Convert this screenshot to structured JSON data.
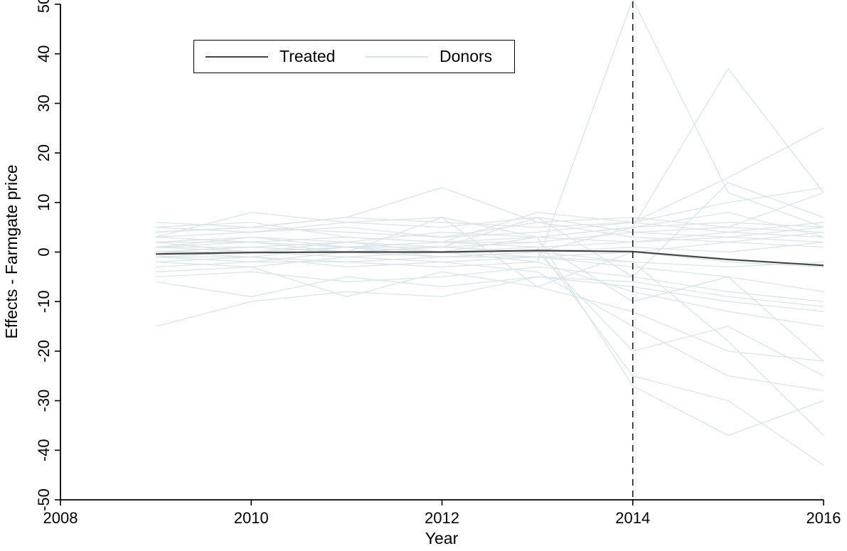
{
  "page": {
    "background": "#ffffff"
  },
  "chart_data": {
    "type": "line",
    "title": "",
    "xlabel": "Year",
    "ylabel": "Effects - Farmgate price",
    "xlim": [
      2008,
      2016
    ],
    "ylim": [
      -50,
      50
    ],
    "xticks": [
      2008,
      2010,
      2012,
      2014,
      2016
    ],
    "yticks": [
      50,
      40,
      30,
      20,
      10,
      0,
      -10,
      -20,
      -30,
      -40,
      -50
    ],
    "grid": false,
    "legend_position": "top-left-inside",
    "legend": [
      {
        "label": "Treated",
        "color": "#454545"
      },
      {
        "label": "Donors",
        "color": "#d9e4e8"
      }
    ],
    "treatment_line": {
      "x": 2014,
      "style": "dashed",
      "color": "#1a1a1a"
    },
    "x": [
      2009,
      2010,
      2011,
      2012,
      2013,
      2014,
      2015,
      2016
    ],
    "treated": {
      "name": "Treated",
      "color": "#454545",
      "values": [
        -0.4,
        -0.1,
        0,
        0,
        0.3,
        0.1,
        -1.5,
        -2.7
      ]
    },
    "donors": {
      "name": "Donors",
      "color": "#d9e4e8",
      "series": [
        [
          5,
          6,
          3,
          2,
          8,
          6,
          4,
          3
        ],
        [
          2,
          3,
          1,
          0,
          -2,
          51,
          12,
          5
        ],
        [
          3,
          8,
          6,
          7,
          3,
          5,
          37,
          12
        ],
        [
          -1,
          -2,
          0,
          1,
          7,
          -5,
          14,
          7
        ],
        [
          -15,
          -10,
          -8,
          -9,
          -5,
          -7,
          -10,
          -12
        ],
        [
          -4,
          -3,
          -9,
          -4,
          -7,
          -12,
          -20,
          -22
        ],
        [
          0,
          1,
          2,
          0,
          3,
          -27,
          -37,
          -30
        ],
        [
          2,
          0,
          1,
          2,
          1,
          -25,
          -30,
          -43
        ],
        [
          1,
          2,
          0,
          -1,
          0,
          -20,
          -15,
          -25
        ],
        [
          -2,
          -1,
          -3,
          -2,
          -4,
          -15,
          -25,
          -28
        ],
        [
          0,
          0,
          1,
          1,
          2,
          -10,
          -5,
          -8
        ],
        [
          3,
          4,
          5,
          3,
          6,
          7,
          5,
          12
        ],
        [
          6,
          5,
          7,
          6,
          5,
          6,
          15,
          25
        ],
        [
          -5,
          -4,
          -6,
          -5,
          -3,
          -5,
          -8,
          -10
        ],
        [
          1,
          1,
          0,
          0,
          1,
          2,
          3,
          2
        ],
        [
          4,
          5,
          7,
          13,
          6,
          3,
          2,
          4
        ],
        [
          -1,
          0,
          -1,
          0,
          -1,
          0,
          -2,
          -3
        ],
        [
          0,
          -1,
          1,
          -1,
          0,
          5,
          8,
          3
        ],
        [
          4,
          5,
          4,
          3,
          4,
          6,
          10,
          13
        ],
        [
          -3,
          -2,
          -2,
          -3,
          -2,
          -8,
          -12,
          -15
        ],
        [
          1,
          0,
          2,
          1,
          0,
          -2,
          -18,
          -37
        ],
        [
          0,
          1,
          0,
          7,
          -7,
          0,
          2,
          1
        ],
        [
          5,
          4,
          6,
          5,
          7,
          4,
          3,
          5
        ],
        [
          -2,
          -3,
          -1,
          -2,
          -1,
          -3,
          -5,
          -22
        ],
        [
          2,
          2,
          3,
          2,
          2,
          4,
          5,
          4
        ],
        [
          0,
          0,
          0,
          1,
          0,
          1,
          0,
          2
        ],
        [
          -1,
          -1,
          -2,
          -1,
          -1,
          -2,
          -3,
          -2
        ],
        [
          3,
          2,
          1,
          2,
          3,
          2,
          4,
          6
        ],
        [
          1,
          3,
          2,
          4,
          3,
          5,
          6,
          5
        ],
        [
          -6,
          -9,
          -5,
          -7,
          -5,
          -6,
          -9,
          -11
        ]
      ]
    }
  }
}
